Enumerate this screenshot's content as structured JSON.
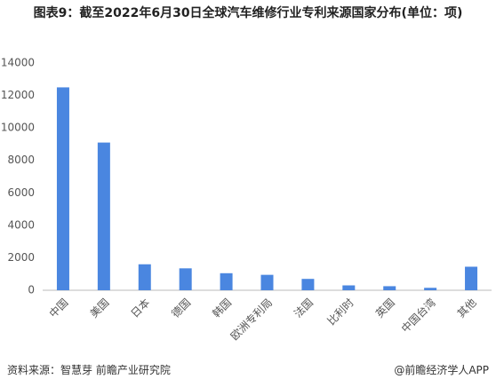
{
  "chart_data": {
    "type": "bar",
    "title": "图表9：截至2022年6月30日全球汽车维修行业专利来源国家分布(单位：项)",
    "categories": [
      "中国",
      "美国",
      "日本",
      "德国",
      "韩国",
      "欧洲专利局",
      "法国",
      "比利时",
      "英国",
      "中国台湾",
      "其他"
    ],
    "values": [
      12500,
      9100,
      1600,
      1350,
      1050,
      950,
      700,
      300,
      250,
      150,
      1450
    ],
    "color": "#4a86e0",
    "ylim": [
      0,
      14000
    ],
    "yticks": [
      0,
      2000,
      4000,
      6000,
      8000,
      10000,
      12000,
      14000
    ],
    "grid": false
  },
  "footer": {
    "source": "资料来源：智慧芽 前瞻产业研究院",
    "brand": "@前瞻经济学人APP"
  }
}
